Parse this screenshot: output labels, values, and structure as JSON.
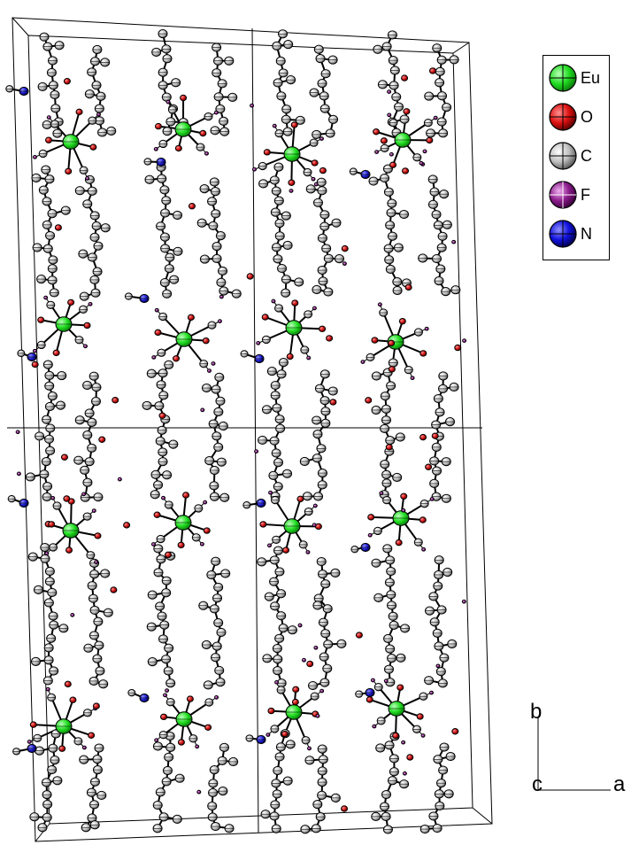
{
  "legend": {
    "items": [
      {
        "label": "Eu",
        "color": "#22dd22"
      },
      {
        "label": "O",
        "color": "#dd1111"
      },
      {
        "label": "C",
        "color": "#bfbfbf"
      },
      {
        "label": "F",
        "color": "#8a1a8a"
      },
      {
        "label": "N",
        "color": "#1111dd"
      }
    ]
  },
  "axes": {
    "b_label": "b",
    "c_label": "c",
    "a_label": "a"
  },
  "colors": {
    "eu": "#22dd22",
    "o": "#cc1111",
    "c": "#bfbfbf",
    "f": "#9a2a9a",
    "n": "#1a1acc",
    "bond": "#000000"
  }
}
